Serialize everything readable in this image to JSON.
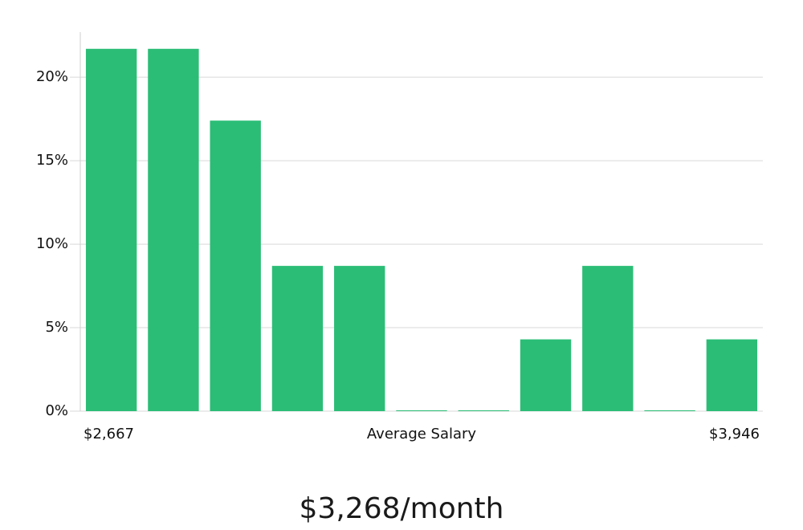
{
  "chart_data": {
    "type": "bar",
    "categories": [
      "$2,667",
      null,
      null,
      null,
      null,
      null,
      null,
      null,
      null,
      null,
      "$3,946"
    ],
    "values": [
      21.7,
      21.7,
      17.4,
      8.7,
      8.7,
      0,
      0,
      4.3,
      8.7,
      0,
      4.3
    ],
    "color": "#2bbd76",
    "x_label": "Average Salary",
    "footer": "$3,268/month",
    "ylim": [
      0,
      22.7
    ],
    "yticks": [
      {
        "value": 0,
        "label": "0%"
      },
      {
        "value": 5,
        "label": "5%"
      },
      {
        "value": 10,
        "label": "10%"
      },
      {
        "value": 15,
        "label": "15%"
      },
      {
        "value": 20,
        "label": "20%"
      }
    ],
    "grid": true
  }
}
